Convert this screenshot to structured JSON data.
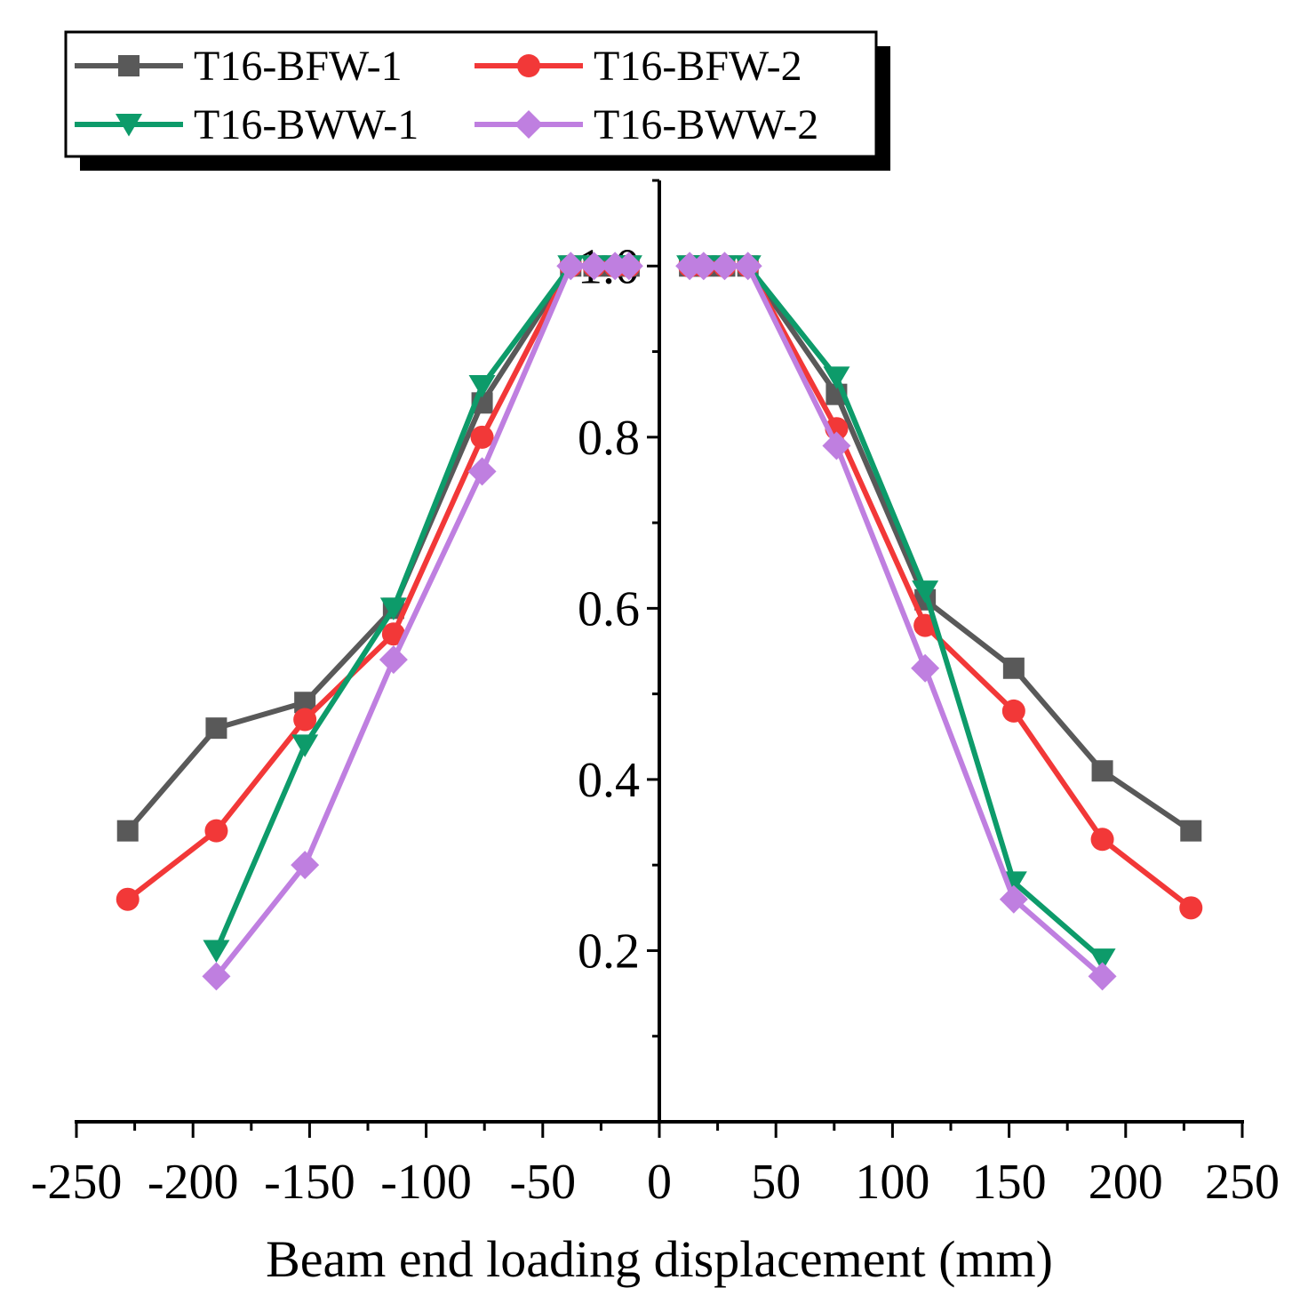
{
  "chart_data": {
    "type": "line",
    "title": "",
    "xlabel": "Beam end loading displacement (mm)",
    "ylabel": "",
    "xlim": [
      -250,
      250
    ],
    "ylim": [
      0,
      1.1
    ],
    "x_ticks": [
      "-250",
      "-200",
      "-150",
      "-100",
      "-50",
      "0",
      "50",
      "100",
      "150",
      "200",
      "250"
    ],
    "y_ticks": [
      "0.2",
      "0.4",
      "0.6",
      "0.8",
      "1.0"
    ],
    "legend_position": "top-left",
    "series": [
      {
        "name": "T16-BFW-1",
        "color": "#595959",
        "marker": "square",
        "segments": [
          {
            "x": [
              -228,
              -190,
              -152,
              -114,
              -76,
              -38,
              -28,
              -19,
              -13
            ],
            "y": [
              0.34,
              0.46,
              0.49,
              0.6,
              0.84,
              1.0,
              1.0,
              1.0,
              1.0
            ]
          },
          {
            "x": [
              13,
              19,
              28,
              38,
              76,
              114,
              152,
              190,
              228
            ],
            "y": [
              1.0,
              1.0,
              1.0,
              1.0,
              0.85,
              0.61,
              0.53,
              0.41,
              0.34
            ]
          }
        ]
      },
      {
        "name": "T16-BFW-2",
        "color": "#f23838",
        "marker": "circle",
        "segments": [
          {
            "x": [
              -228,
              -190,
              -152,
              -114,
              -76,
              -38,
              -28,
              -19,
              -13
            ],
            "y": [
              0.26,
              0.34,
              0.47,
              0.57,
              0.8,
              1.0,
              1.0,
              1.0,
              1.0
            ]
          },
          {
            "x": [
              13,
              19,
              28,
              38,
              76,
              114,
              152,
              190,
              228
            ],
            "y": [
              1.0,
              1.0,
              1.0,
              1.0,
              0.81,
              0.58,
              0.48,
              0.33,
              0.25
            ]
          }
        ]
      },
      {
        "name": "T16-BWW-1",
        "color": "#0d9b6a",
        "marker": "triangle-down",
        "segments": [
          {
            "x": [
              -190,
              -152,
              -114,
              -76,
              -38,
              -28,
              -19,
              -13
            ],
            "y": [
              0.2,
              0.44,
              0.6,
              0.86,
              1.0,
              1.0,
              1.0,
              1.0
            ]
          },
          {
            "x": [
              13,
              19,
              28,
              38,
              76,
              114,
              152,
              190
            ],
            "y": [
              1.0,
              1.0,
              1.0,
              1.0,
              0.87,
              0.62,
              0.28,
              0.19
            ]
          }
        ]
      },
      {
        "name": "T16-BWW-2",
        "color": "#bf7fe0",
        "marker": "diamond",
        "segments": [
          {
            "x": [
              -190,
              -152,
              -114,
              -76,
              -38,
              -28,
              -19,
              -13
            ],
            "y": [
              0.17,
              0.3,
              0.54,
              0.76,
              1.0,
              1.0,
              1.0,
              1.0
            ]
          },
          {
            "x": [
              13,
              19,
              28,
              38,
              76,
              114,
              152,
              190
            ],
            "y": [
              1.0,
              1.0,
              1.0,
              1.0,
              0.79,
              0.53,
              0.26,
              0.17
            ]
          }
        ]
      }
    ]
  }
}
